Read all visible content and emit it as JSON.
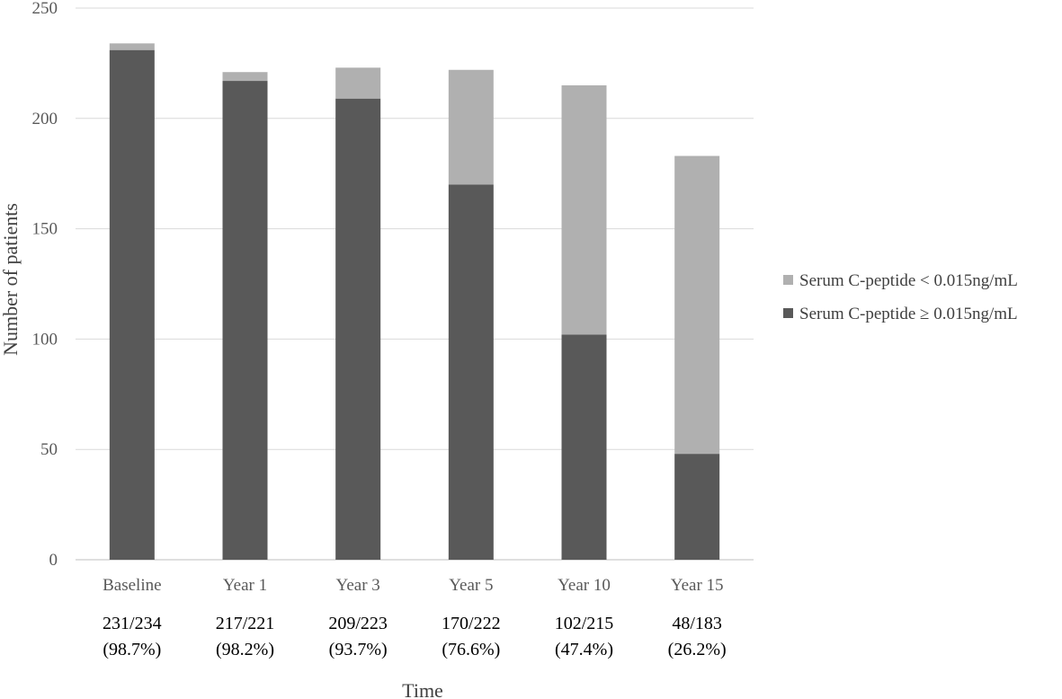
{
  "chart_data": {
    "type": "bar",
    "stacked": true,
    "categories": [
      "Baseline",
      "Year 1",
      "Year 3",
      "Year 5",
      "Year 10",
      "Year 15"
    ],
    "series": [
      {
        "name": "Serum C-peptide ≥ 0.015ng/mL",
        "values": [
          231,
          217,
          209,
          170,
          102,
          48
        ],
        "color": "#595959"
      },
      {
        "name": "Serum C-peptide < 0.015ng/mL",
        "values": [
          3,
          4,
          14,
          52,
          113,
          135
        ],
        "color": "#b0b0b0"
      }
    ],
    "totals": [
      234,
      221,
      223,
      222,
      215,
      183
    ],
    "ratio_labels": [
      {
        "count": "231/234",
        "percent": "(98.7%)"
      },
      {
        "count": "217/221",
        "percent": "(98.2%)"
      },
      {
        "count": "209/223",
        "percent": "(93.7%)"
      },
      {
        "count": "170/222",
        "percent": "(76.6%)"
      },
      {
        "count": "102/215",
        "percent": "(47.4%)"
      },
      {
        "count": "48/183",
        "percent": "(26.2%)"
      }
    ],
    "xlabel": "Time",
    "ylabel": "Number of patients",
    "ylim": [
      0,
      250
    ],
    "yticks": [
      0,
      50,
      100,
      150,
      200,
      250
    ],
    "grid": true,
    "legend": {
      "position": "right",
      "entries": [
        "Serum C-peptide < 0.015ng/mL",
        "Serum C-peptide ≥ 0.015ng/mL"
      ]
    }
  }
}
